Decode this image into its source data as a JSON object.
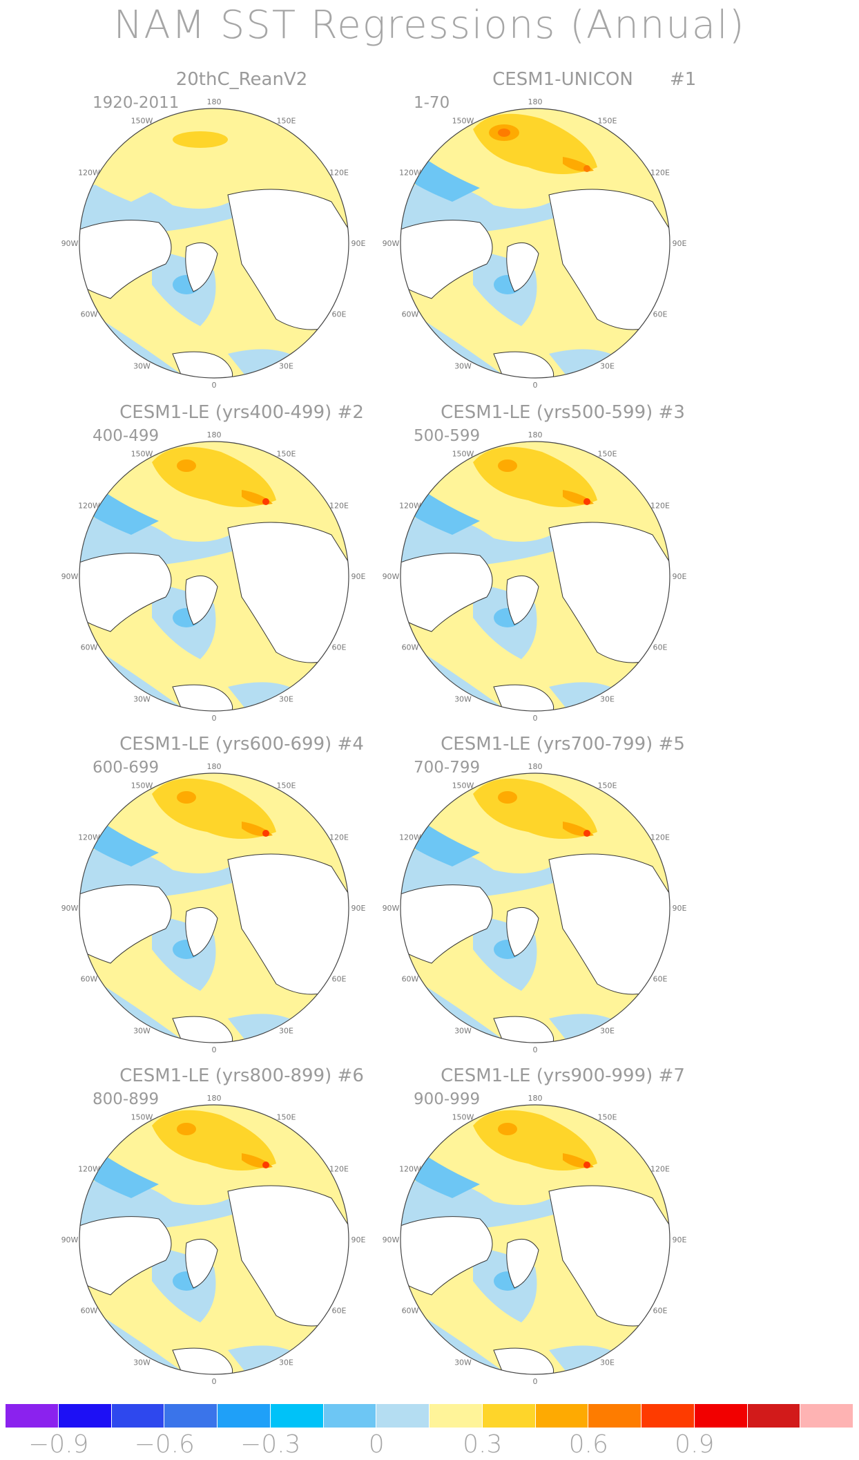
{
  "title": "NAM SST Regressions (Annual)",
  "lon_labels": [
    "180",
    "150E",
    "120E",
    "90E",
    "60E",
    "30E",
    "0",
    "30W",
    "60W",
    "90W",
    "120W",
    "150W"
  ],
  "panels": [
    {
      "title": "20thC_ReanV2",
      "number": "",
      "period": "1920-2011",
      "variant": "obs"
    },
    {
      "title": "CESM1-UNICON",
      "number": "#1",
      "period": "1-70",
      "variant": "unicon"
    },
    {
      "title": "CESM1-LE (yrs400-499) #2",
      "number": "",
      "period": "400-499",
      "variant": "le"
    },
    {
      "title": "CESM1-LE (yrs500-599) #3",
      "number": "",
      "period": "500-599",
      "variant": "le"
    },
    {
      "title": "CESM1-LE (yrs600-699) #4",
      "number": "",
      "period": "600-699",
      "variant": "le"
    },
    {
      "title": "CESM1-LE (yrs700-799) #5",
      "number": "",
      "period": "700-799",
      "variant": "le"
    },
    {
      "title": "CESM1-LE (yrs800-899) #6",
      "number": "",
      "period": "800-899",
      "variant": "le"
    },
    {
      "title": "CESM1-LE (yrs900-999) #7",
      "number": "",
      "period": "900-999",
      "variant": "le"
    }
  ],
  "colorbar": {
    "colors": [
      "#8b22ee",
      "#1d10f5",
      "#2e48ee",
      "#3a74ea",
      "#1fa0f8",
      "#00c2f8",
      "#6dc6f4",
      "#b4ddf2",
      "#fff499",
      "#fed52a",
      "#feaa02",
      "#fe7c00",
      "#fe3b00",
      "#f20000",
      "#d21a1a",
      "#feb3b3"
    ],
    "labels": [
      "−0.9",
      "−0.6",
      "−0.3",
      "0",
      "0.3",
      "0.6",
      "0.9"
    ]
  }
}
